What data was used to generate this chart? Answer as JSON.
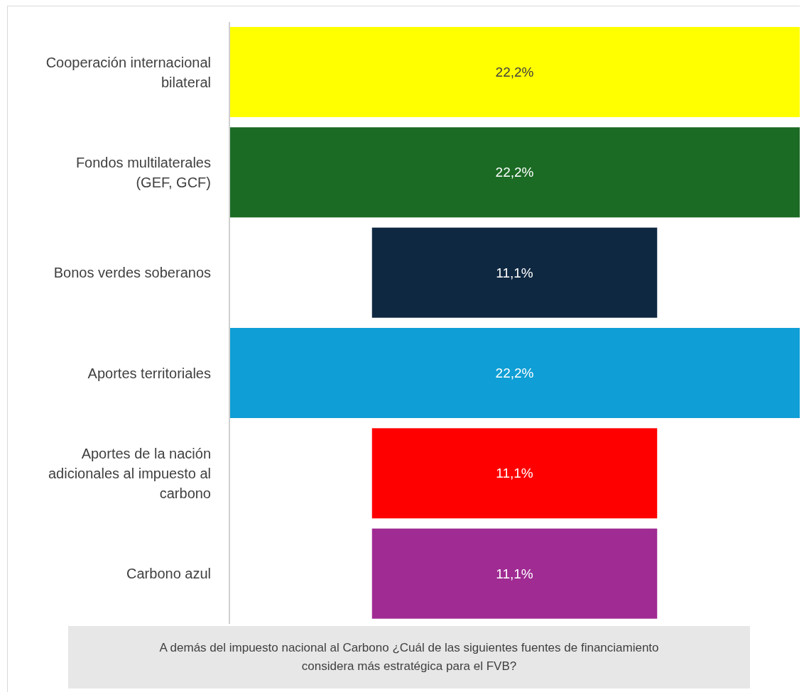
{
  "chart_data": {
    "type": "other",
    "title": "A demás del impuesto nacional al Carbono ¿Cuál de las siguientes fuentes de financiamiento considera más estratégica para el FVB?",
    "categories": [
      "Cooperación internacional bilateral",
      "Fondos multilaterales (GEF, GCF)",
      "Bonos verdes soberanos",
      "Aportes territoriales",
      "Aportes de la nación adicionales al impuesto al carbono",
      "Carbono azul"
    ],
    "values": [
      22.2,
      22.2,
      11.1,
      22.2,
      11.1,
      11.1
    ],
    "value_labels": [
      "22,2%",
      "22,2%",
      "11,1%",
      "22,2%",
      "11,1%",
      "11,1%"
    ],
    "colors": [
      "#ffff00",
      "#1b6b24",
      "#0f2841",
      "#0f9ed5",
      "#ff0000",
      "#a02b93"
    ]
  }
}
